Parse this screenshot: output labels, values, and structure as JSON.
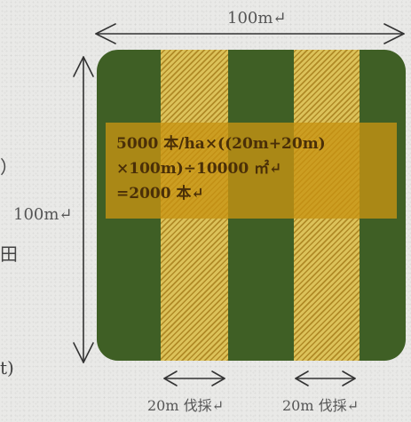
{
  "dimensions": {
    "width_label": "100m↵",
    "height_label": "100m↵"
  },
  "formula": {
    "line1": "5000 本/ha×((20m+20m)",
    "line2": "×100m)÷10000 ㎡↵",
    "line3": "=2000 本↵"
  },
  "cut_strips": [
    {
      "label": "20m 伐採↵"
    },
    {
      "label": "20m 伐採↵"
    }
  ],
  "left_fragments": [
    "）",
    "田",
    "t)"
  ],
  "colors": {
    "plot": "#3f5f25",
    "cut_strip": "#dcc25a",
    "hatch": "#b08a26",
    "formula_box": "#c89412"
  }
}
